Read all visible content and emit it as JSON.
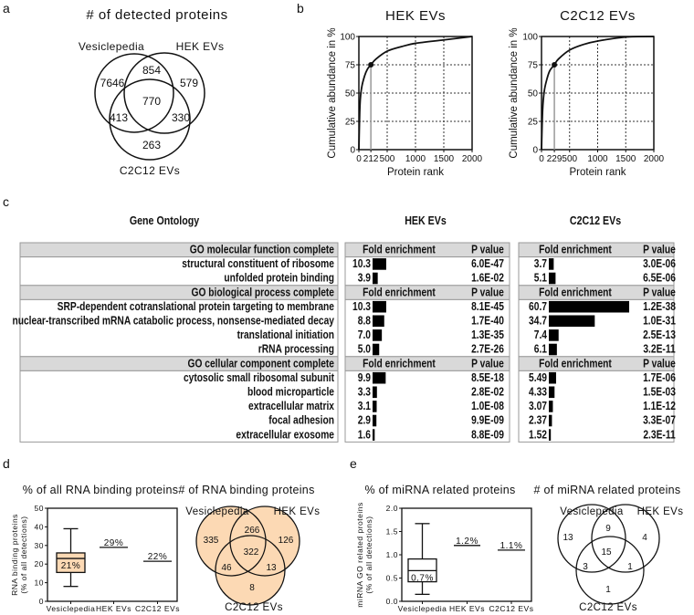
{
  "panel_labels": {
    "a": "a",
    "b": "b",
    "c": "c",
    "d": "d",
    "e": "e"
  },
  "panel_a": {
    "title": "# of detected proteins",
    "sets": [
      "Vesiclepedia",
      "HEK EVs",
      "C2C12 EVs"
    ],
    "regions": {
      "ves_only": "7646",
      "ves_hek": "854",
      "hek_only": "579",
      "all": "770",
      "ves_c2": "413",
      "hek_c2": "330",
      "c2_only": "263"
    }
  },
  "chart_data": [
    {
      "type": "line",
      "title": "HEK EVs",
      "xlabel": "Protein rank",
      "ylabel": "Cumulative abundance in %",
      "xlim": [
        0,
        2000
      ],
      "ylim": [
        0,
        100
      ],
      "x_ticks": [
        "0",
        "212",
        "500",
        "1000",
        "1500",
        "2000"
      ],
      "y_ticks": [
        "0",
        "25",
        "50",
        "75",
        "100"
      ],
      "grid": "dashed at 500/1000/1500 and 25/50/75",
      "marker": {
        "x": 212,
        "y": 75
      },
      "x": [
        0,
        20,
        50,
        100,
        150,
        212,
        300,
        500,
        750,
        1000,
        1500,
        2000
      ],
      "y": [
        0,
        40,
        55,
        65,
        71,
        75,
        80,
        87,
        91,
        94,
        97,
        100
      ]
    },
    {
      "type": "line",
      "title": "C2C12 EVs",
      "xlabel": "Protein rank",
      "ylabel": "Cumulative abundance in %",
      "xlim": [
        0,
        2000
      ],
      "ylim": [
        0,
        100
      ],
      "x_ticks": [
        "0",
        "229",
        "500",
        "1000",
        "1500",
        "2000"
      ],
      "y_ticks": [
        "0",
        "25",
        "50",
        "75",
        "100"
      ],
      "grid": "dashed at 500/1000/1500 and 25/50/75",
      "marker": {
        "x": 229,
        "y": 75
      },
      "x": [
        0,
        20,
        50,
        100,
        150,
        229,
        300,
        500,
        750,
        1000,
        1500,
        2000
      ],
      "y": [
        0,
        35,
        52,
        63,
        70,
        75,
        80,
        88,
        93,
        96,
        99.5,
        100
      ]
    },
    {
      "type": "table",
      "title": "Gene Ontology",
      "group_titles": [
        "HEK EVs",
        "C2C12 EVs"
      ],
      "fold_label": "Fold enrichment",
      "p_label": "P value",
      "sections": [
        {
          "name": "GO molecular function complete",
          "rows": [
            {
              "term": "structural constituent of ribosome",
              "hek_fe": "10.3",
              "hek_p": "6.0E-47",
              "c2_fe": "3.7",
              "c2_p": "3.0E-06"
            },
            {
              "term": "unfolded protein binding",
              "hek_fe": "3.9",
              "hek_p": "1.6E-02",
              "c2_fe": "5.1",
              "c2_p": "6.5E-06"
            }
          ]
        },
        {
          "name": "GO biological process complete",
          "rows": [
            {
              "term": "SRP-dependent cotranslational protein targeting to membrane",
              "hek_fe": "10.3",
              "hek_p": "8.1E-45",
              "c2_fe": "60.7",
              "c2_p": "1.2E-38"
            },
            {
              "term": "nuclear-transcribed mRNA catabolic process, nonsense-mediated decay",
              "hek_fe": "8.8",
              "hek_p": "1.7E-40",
              "c2_fe": "34.7",
              "c2_p": "1.0E-31"
            },
            {
              "term": "translational initiation",
              "hek_fe": "7.0",
              "hek_p": "1.3E-35",
              "c2_fe": "7.4",
              "c2_p": "2.5E-13"
            },
            {
              "term": "rRNA processing",
              "hek_fe": "5.0",
              "hek_p": "2.7E-26",
              "c2_fe": "6.1",
              "c2_p": "3.2E-11"
            }
          ]
        },
        {
          "name": "GO cellular component complete",
          "rows": [
            {
              "term": "cytosolic small ribosomal subunit",
              "hek_fe": "9.9",
              "hek_p": "8.5E-18",
              "c2_fe": "5.49",
              "c2_p": "1.7E-06"
            },
            {
              "term": "blood microparticle",
              "hek_fe": "3.3",
              "hek_p": "2.8E-02",
              "c2_fe": "4.33",
              "c2_p": "1.5E-03"
            },
            {
              "term": "extracellular matrix",
              "hek_fe": "3.1",
              "hek_p": "1.0E-08",
              "c2_fe": "3.07",
              "c2_p": "1.1E-12"
            },
            {
              "term": "focal adhesion",
              "hek_fe": "2.9",
              "hek_p": "9.9E-09",
              "c2_fe": "2.37",
              "c2_p": "3.3E-07"
            },
            {
              "term": "extracellular exosome",
              "hek_fe": "1.6",
              "hek_p": "8.8E-09",
              "c2_fe": "1.52",
              "c2_p": "2.3E-11"
            }
          ]
        }
      ]
    },
    {
      "type": "box",
      "title": "% of all RNA binding proteins",
      "ylabel": [
        "RNA binding proteins",
        "(% of all detections)"
      ],
      "ylim": [
        0,
        50
      ],
      "y_ticks": [
        "0",
        "10",
        "20",
        "30",
        "40",
        "50"
      ],
      "categories": [
        "Vesiclepedia",
        "HEK EVs",
        "C2C12 EVs"
      ],
      "box": {
        "min": 8,
        "q1": 15.5,
        "median": 23,
        "q3": 26,
        "max": 39,
        "label": "21%"
      },
      "lines": [
        {
          "value": 29,
          "label": "29%"
        },
        {
          "value": 21.5,
          "label": "22%"
        }
      ],
      "fill": "#fcd9b4"
    },
    {
      "type": "box",
      "title": "% of miRNA related proteins",
      "ylabel": [
        "miRNA GO related proteins",
        "(% of all detections)"
      ],
      "ylim": [
        0,
        2
      ],
      "y_ticks": [
        "0.0",
        "0.5",
        "1.0",
        "1.5",
        "2.0"
      ],
      "categories": [
        "Vesiclepedia",
        "HEK EVs",
        "C2C12 EVs"
      ],
      "box": {
        "min": 0.15,
        "q1": 0.42,
        "median": 0.66,
        "q3": 0.91,
        "max": 1.67,
        "label": "0.7%"
      },
      "lines": [
        {
          "value": 1.2,
          "label": "1.2%"
        },
        {
          "value": 1.1,
          "label": "1.1%"
        }
      ],
      "fill": "#ffffff"
    }
  ],
  "panel_d_venn": {
    "title": "# of RNA binding proteins",
    "sets": [
      "Vesiclepedia",
      "HEK  EVs",
      "C2C12 EVs"
    ],
    "fill": "#fcd9b4",
    "regions": {
      "ves_only": "335",
      "ves_hek": "266",
      "hek_only": "126",
      "all": "322",
      "ves_c2": "46",
      "hek_c2": "13",
      "c2_only": "8"
    }
  },
  "panel_e_venn": {
    "title": "# of miRNA related proteins",
    "sets": [
      "Vesiclepedia",
      "HEK  EVs",
      "C2C12 EVs"
    ],
    "fill": "#ffffff",
    "regions": {
      "ves_only": "13",
      "ves_hek": "9",
      "hek_only": "4",
      "all": "15",
      "ves_c2": "3",
      "hek_c2": "1",
      "c2_only": "1"
    }
  }
}
